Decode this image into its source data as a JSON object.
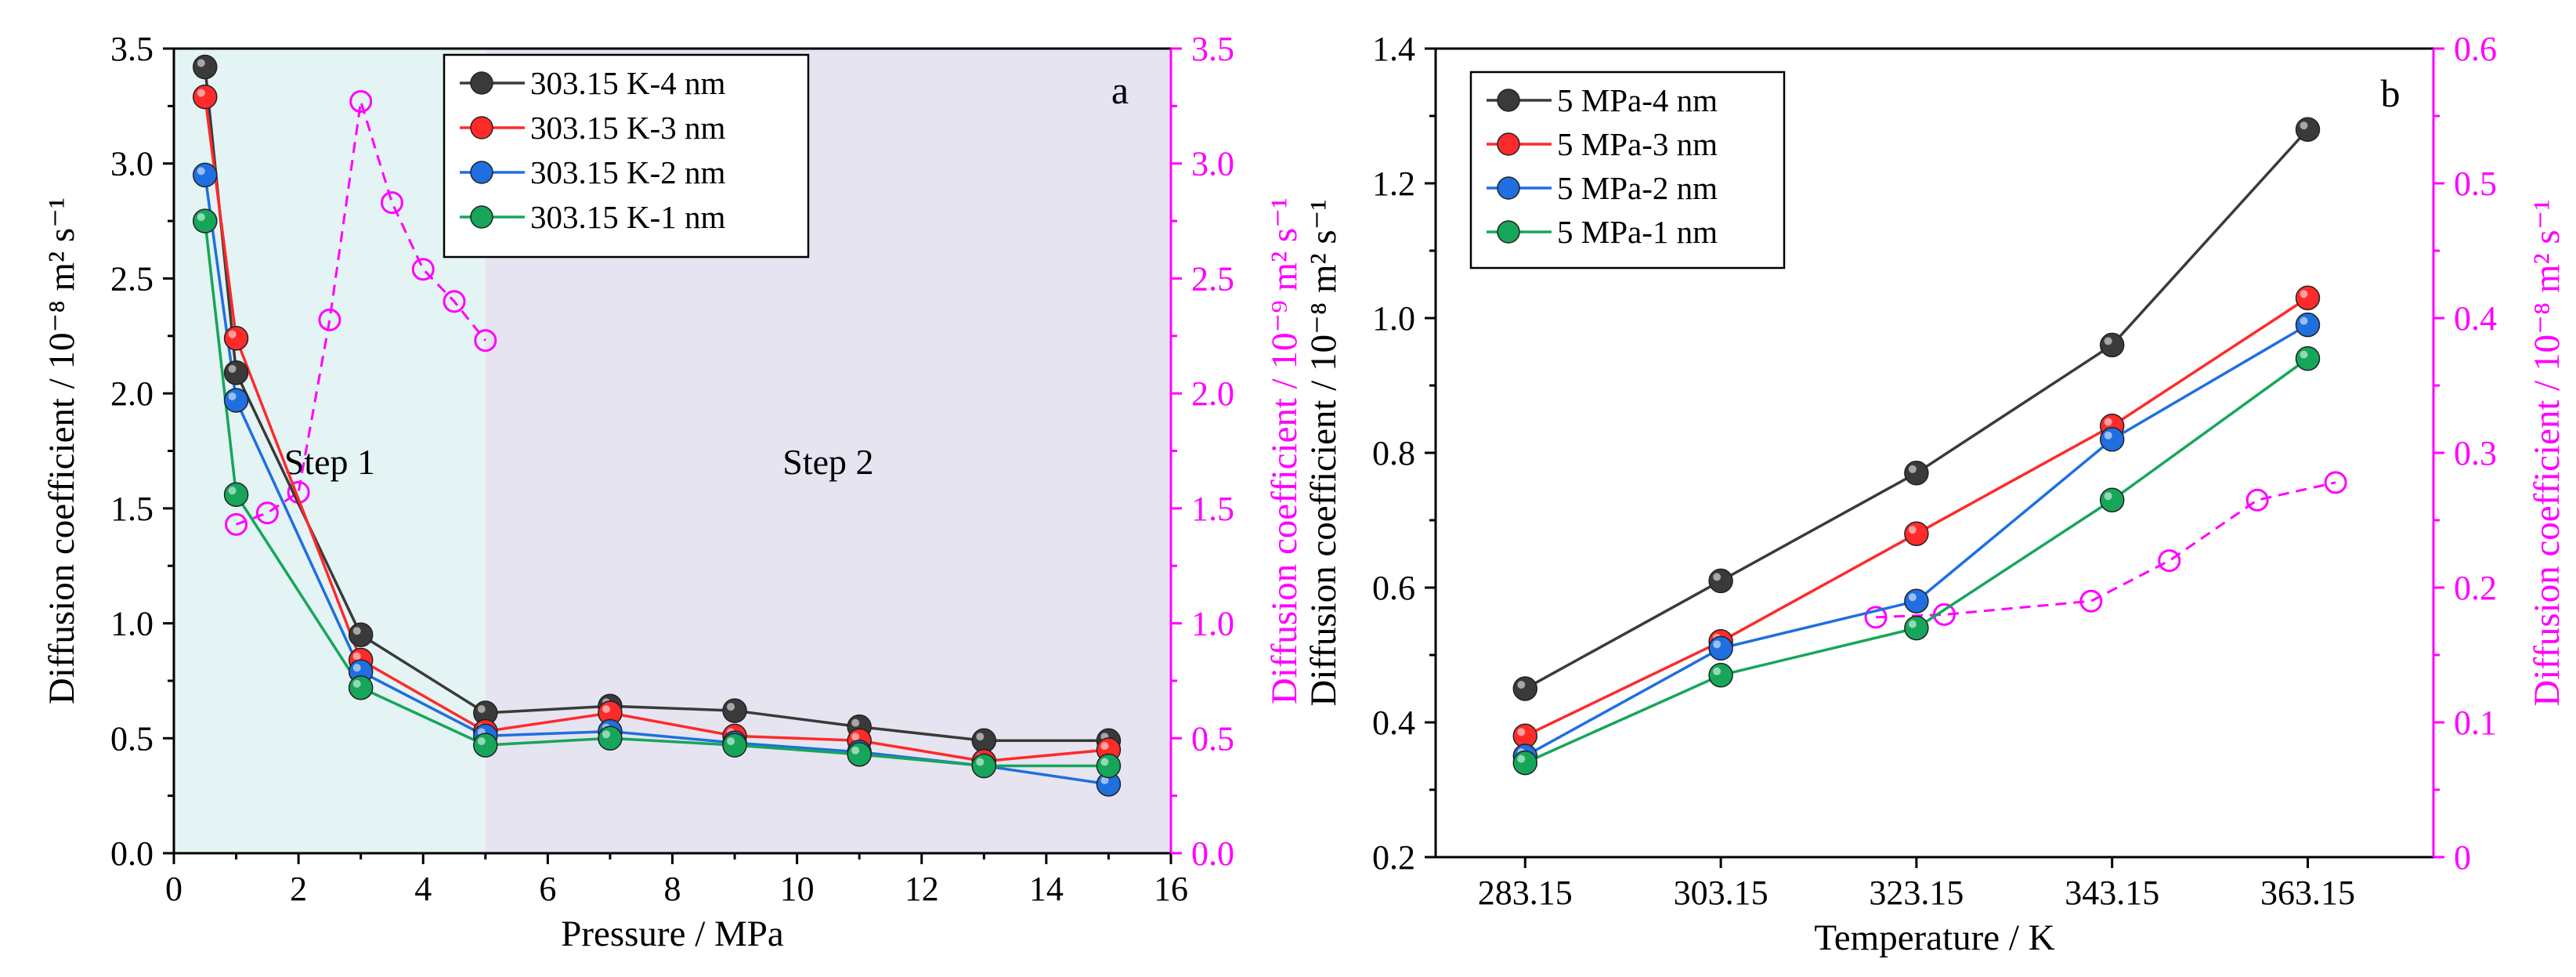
{
  "colors": {
    "black_series": "#3a3a3a",
    "red_series": "#ff2a2a",
    "blue_series": "#1f6fe0",
    "green_series": "#16a65a",
    "magenta_secondary": "#ff00ff",
    "step1_shade": "#e4f3f4",
    "step2_shade": "#e6e4f0"
  },
  "chart_data": [
    {
      "id": "a",
      "type": "line",
      "panel_label": "a",
      "xlabel": "Pressure / MPa",
      "ylabel": "Diffusion coefficient / 10⁻⁸ m² s⁻¹",
      "y2label": "Diffusion coefficient / 10⁻⁹ m² s⁻¹",
      "xlim": [
        0,
        16
      ],
      "ylim": [
        0,
        3.5
      ],
      "y2lim": [
        0,
        3.5
      ],
      "xticks": [
        "0",
        "2",
        "4",
        "6",
        "8",
        "10",
        "12",
        "14",
        "16"
      ],
      "yticks": [
        "0.0",
        "0.5",
        "1.0",
        "1.5",
        "2.0",
        "2.5",
        "3.0",
        "3.5"
      ],
      "y2ticks": [
        "0.0",
        "0.5",
        "1.0",
        "1.5",
        "2.0",
        "2.5",
        "3.0",
        "3.5"
      ],
      "regions": [
        {
          "label": "Step 1",
          "x_from": 0,
          "x_to": 5,
          "color_key": "step1_shade",
          "label_x": 3.4,
          "label_y": 1.65
        },
        {
          "label": "Step 2",
          "x_from": 5,
          "x_to": 16,
          "color_key": "step2_shade",
          "label_x": 10.4,
          "label_y": 1.65
        }
      ],
      "legend_position": "top-center",
      "series": [
        {
          "name": "303.15 K-4 nm",
          "color_key": "black_series",
          "x": [
            0.5,
            1,
            3,
            5,
            7,
            9,
            11,
            13,
            15
          ],
          "y": [
            3.42,
            2.09,
            0.95,
            0.61,
            0.64,
            0.62,
            0.55,
            0.49,
            0.49
          ]
        },
        {
          "name": "303.15 K-3 nm",
          "color_key": "red_series",
          "x": [
            0.5,
            1,
            3,
            5,
            7,
            9,
            11,
            13,
            15
          ],
          "y": [
            3.29,
            2.24,
            0.84,
            0.53,
            0.61,
            0.51,
            0.49,
            0.4,
            0.45
          ]
        },
        {
          "name": "303.15 K-2 nm",
          "color_key": "blue_series",
          "x": [
            0.5,
            1,
            3,
            5,
            7,
            9,
            11,
            13,
            15
          ],
          "y": [
            2.95,
            1.97,
            0.79,
            0.51,
            0.53,
            0.48,
            0.44,
            0.38,
            0.3
          ]
        },
        {
          "name": "303.15 K-1 nm",
          "color_key": "green_series",
          "x": [
            0.5,
            1,
            3,
            5,
            7,
            9,
            11,
            13,
            15
          ],
          "y": [
            2.75,
            1.56,
            0.72,
            0.47,
            0.5,
            0.47,
            0.43,
            0.38,
            0.38
          ]
        }
      ],
      "secondary_series": {
        "name": "secondary (right axis)",
        "color_key": "magenta_secondary",
        "style": "dashed, open circles",
        "x": [
          1,
          1.5,
          2,
          2.5,
          3,
          3.5,
          4,
          4.5,
          5
        ],
        "y": [
          1.43,
          1.48,
          1.57,
          2.32,
          3.27,
          2.83,
          2.54,
          2.4,
          2.23
        ]
      }
    },
    {
      "id": "b",
      "type": "line",
      "panel_label": "b",
      "xlabel": "Temperature / K",
      "ylabel": "Diffusion coefficient / 10⁻⁸ m² s⁻¹",
      "y2label": "Diffusion coefficient / 10⁻⁸ m² s⁻¹",
      "xlim": [
        274,
        376
      ],
      "ylim": [
        0.2,
        1.4
      ],
      "y2lim": [
        0,
        0.6
      ],
      "xtick_values": [
        283.15,
        303.15,
        323.15,
        343.15,
        363.15
      ],
      "xticks": [
        "283.15",
        "303.15",
        "323.15",
        "343.15",
        "363.15"
      ],
      "yticks": [
        "0.2",
        "0.4",
        "0.6",
        "0.8",
        "1.0",
        "1.2",
        "1.4"
      ],
      "y2ticks": [
        "0",
        "0.1",
        "0.2",
        "0.3",
        "0.4",
        "0.5",
        "0.6"
      ],
      "legend_position": "top-left",
      "series": [
        {
          "name": "5 MPa-4 nm",
          "color_key": "black_series",
          "x": [
            283.15,
            303.15,
            323.15,
            343.15,
            363.15
          ],
          "y": [
            0.45,
            0.61,
            0.77,
            0.96,
            1.28
          ]
        },
        {
          "name": "5 MPa-3 nm",
          "color_key": "red_series",
          "x": [
            283.15,
            303.15,
            323.15,
            343.15,
            363.15
          ],
          "y": [
            0.38,
            0.52,
            0.68,
            0.84,
            1.03
          ]
        },
        {
          "name": "5 MPa-2 nm",
          "color_key": "blue_series",
          "x": [
            283.15,
            303.15,
            323.15,
            343.15,
            363.15
          ],
          "y": [
            0.35,
            0.51,
            0.58,
            0.82,
            0.99
          ]
        },
        {
          "name": "5 MPa-1 nm",
          "color_key": "green_series",
          "x": [
            283.15,
            303.15,
            323.15,
            343.15,
            363.15
          ],
          "y": [
            0.34,
            0.47,
            0.54,
            0.73,
            0.94
          ]
        }
      ],
      "secondary_series": {
        "name": "secondary (right axis)",
        "color_key": "magenta_secondary",
        "style": "dashed, open circles",
        "x": [
          319,
          326,
          341,
          349,
          358,
          366
        ],
        "y": [
          0.178,
          0.18,
          0.19,
          0.22,
          0.265,
          0.278
        ]
      }
    }
  ]
}
